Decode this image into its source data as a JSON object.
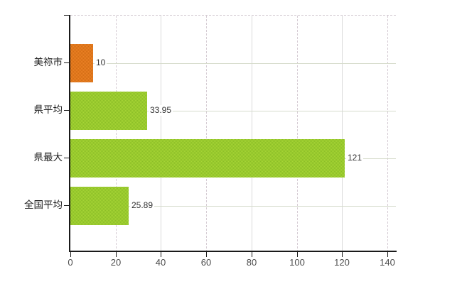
{
  "chart_data": {
    "type": "bar",
    "orientation": "horizontal",
    "title": "",
    "categories": [
      "美祢市",
      "県平均",
      "県最大",
      "全国平均"
    ],
    "values": [
      10,
      33.95,
      121,
      25.89
    ],
    "x_ticks": [
      0,
      20,
      40,
      60,
      80,
      100,
      120,
      140
    ],
    "xlim": [
      0,
      144
    ],
    "grid": true,
    "legend": false,
    "bars": [
      {
        "category": "美祢市",
        "value": 10,
        "value_label": "10",
        "color_light": "#ee8226",
        "color_dark": "#d16c13"
      },
      {
        "category": "県平均",
        "value": 33.95,
        "value_label": "33.95",
        "color_light": "#a8d636",
        "color_dark": "#8abd26"
      },
      {
        "category": "県最大",
        "value": 121,
        "value_label": "121",
        "color_light": "#a8d636",
        "color_dark": "#8abd26"
      },
      {
        "category": "全国平均",
        "value": 25.89,
        "value_label": "25.89",
        "color_light": "#a8d636",
        "color_dark": "#8abd26"
      }
    ],
    "colors": {
      "bar_orange": "#e0761b",
      "bar_green": "#99c92e",
      "grid_vertical_solid": "#dadada",
      "grid_vertical_dashed": "#d5cbd3",
      "grid_horizontal": "#d6dccc",
      "plot_top_border": "#d3cad2",
      "axis": "#1a1a1a",
      "tick_label": "#4d4d4d",
      "value_label": "#333333",
      "background": "#ffffff"
    }
  }
}
